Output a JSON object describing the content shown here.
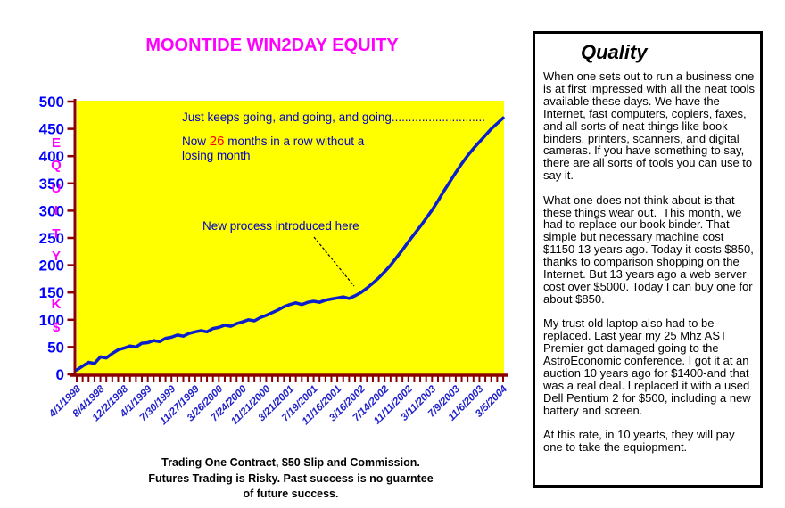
{
  "chart": {
    "title": "MOONTIDE WIN2DAY EQUITY"
  },
  "y_axis_letters": [
    "E",
    "Q",
    "U",
    "I",
    "T",
    "Y",
    "K",
    "$"
  ],
  "annotations": {
    "keeps_going": "Just keeps going, and going, and going............................",
    "now_pre": "Now ",
    "now_count": "26",
    "now_post": " months in a row without a",
    "now_line2": "losing month",
    "new_process": "New process introduced here"
  },
  "footer": [
    "Trading One Contract, $50 Slip and Commission.",
    "Futures Trading is Risky. Past success is no guarntee",
    "of future success."
  ],
  "panel": {
    "title": "Quality",
    "paragraphs": [
      "When one sets out to run a business one is at first impressed with all the neat tools available these days. We have the Internet, fast computers, copiers, faxes, and all sorts of neat things like book binders, printers, scanners, and digital cameras. If you have something to say, there are all sorts of tools you can use to say it.",
      "What one does not think about is that these things wear out.  This month, we had to replace our book binder. That simple but necessary machine cost $1150 13 years ago. Today it costs $850, thanks to comparison shopping on the Internet. But 13 years ago a web server cost over $5000. Today I can buy one for about $850.",
      "My trust old laptop also had to be replaced. Last year my 25 Mhz AST Premier got damaged going to the AstroEconomic conference. I got it at an auction 10 years ago for $1400-and that was a real deal. I replaced it with a used Dell Pentium 2 for $500, including a new battery and screen.",
      "At this rate, in 10 yearts, they will pay one to take the equiopment."
    ]
  },
  "colors": {
    "plot_bg": "#FFFF00",
    "curve": "#0A1ECC",
    "axis": "#8B0000",
    "y_tick_label": "#0000FF",
    "x_tick_label": "#2222CC",
    "title": "#FF00FF",
    "annotation": "#0000CC",
    "highlight": "#FF0000",
    "arrow": "#000000"
  },
  "chart_data": {
    "type": "line",
    "title": "MOONTIDE WIN2DAY EQUITY",
    "xlabel": "",
    "ylabel": "EQUITY K$",
    "ylim": [
      0,
      500
    ],
    "y_ticks": [
      0,
      50,
      100,
      150,
      200,
      250,
      300,
      350,
      400,
      450,
      500
    ],
    "grid": false,
    "legend": "none",
    "plot_background": "#FFFF00",
    "x_tick_labels": [
      "4/1/1998",
      "8/4/1998",
      "12/2/1998",
      "4/1/1999",
      "7/30/1999",
      "11/27/1999",
      "3/26/2000",
      "7/24/2000",
      "11/21/2000",
      "3/21/2001",
      "7/19/2001",
      "11/16/2001",
      "3/16/2002",
      "7/14/2002",
      "11/11/2002",
      "3/11/2003",
      "7/9/2003",
      "11/6/2003",
      "3/5/2004"
    ],
    "points_per_label": 4,
    "series": [
      {
        "name": "Equity (K$)",
        "values": [
          8,
          15,
          22,
          20,
          32,
          30,
          38,
          45,
          48,
          52,
          50,
          57,
          58,
          62,
          60,
          66,
          68,
          72,
          70,
          75,
          78,
          80,
          78,
          84,
          86,
          90,
          88,
          93,
          96,
          100,
          98,
          104,
          108,
          113,
          118,
          124,
          128,
          131,
          128,
          132,
          134,
          132,
          136,
          138,
          140,
          142,
          139,
          144,
          150,
          158,
          167,
          177,
          188,
          200,
          214,
          228,
          243,
          257,
          271,
          286,
          301,
          318,
          336,
          353,
          370,
          386,
          401,
          414,
          426,
          438,
          450,
          460,
          470
        ]
      }
    ],
    "annotations": [
      {
        "text": "Just keeps going, and going, and going............................"
      },
      {
        "text": "Now 26 months in a row without a losing month"
      },
      {
        "text": "New process introduced here",
        "arrow_to_value": 150
      }
    ]
  }
}
